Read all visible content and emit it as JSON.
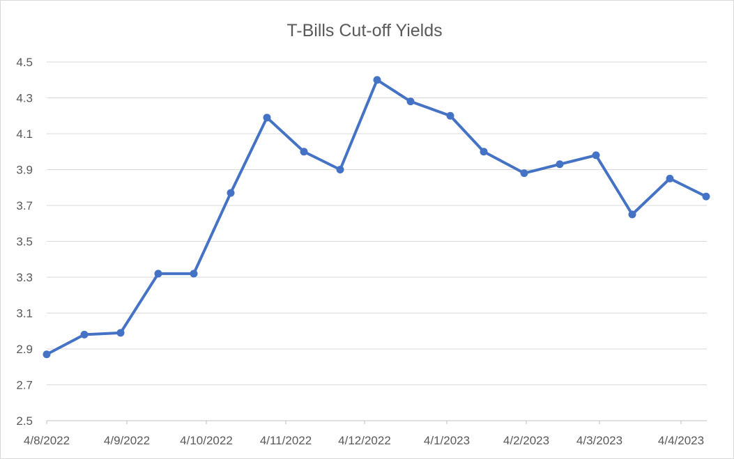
{
  "chart_data": {
    "type": "line",
    "title": "T-Bills Cut-off Yields",
    "xlabel": "",
    "ylabel": "",
    "x_tick_labels": [
      "4/8/2022",
      "4/9/2022",
      "4/10/2022",
      "4/11/2022",
      "4/12/2022",
      "4/1/2023",
      "4/2/2023",
      "4/3/2023",
      "4/4/2023"
    ],
    "y_ticks": [
      "2.5",
      "2.7",
      "2.9",
      "3.1",
      "3.3",
      "3.5",
      "3.7",
      "3.9",
      "4.1",
      "4.3",
      "4.5"
    ],
    "ylim": [
      2.5,
      4.5
    ],
    "grid": true,
    "legend": "none",
    "series": [
      {
        "values": [
          2.87,
          2.98,
          2.99,
          3.32,
          3.32,
          3.77,
          4.19,
          4.0,
          3.9,
          4.4,
          4.28,
          4.2,
          4.0,
          3.88,
          3.93,
          3.98,
          3.65,
          3.85,
          3.75
        ],
        "color": "#4472c4"
      }
    ],
    "colors": {
      "line": "#4472c4",
      "grid": "#d9d9d9",
      "axis": "#bfbfbf",
      "text": "#595959"
    }
  }
}
